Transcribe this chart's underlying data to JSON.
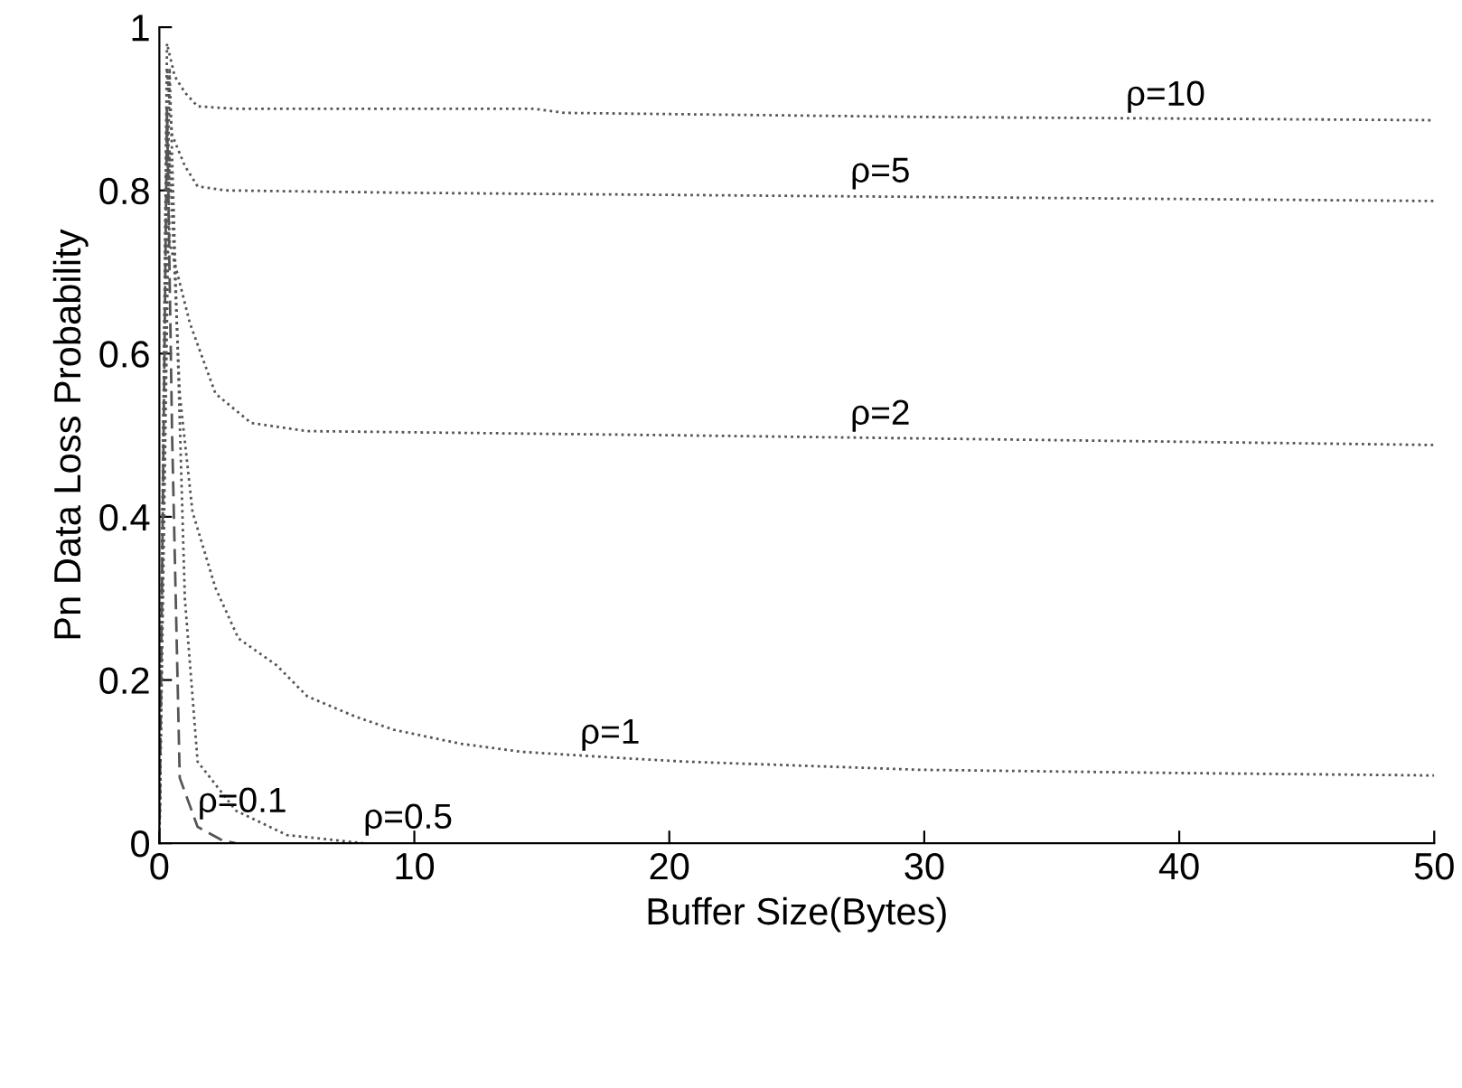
{
  "chart_data": {
    "type": "line",
    "xlabel": "Buffer Size(Bytes)",
    "ylabel": "Pn Data Loss Probability",
    "xlim": [
      0,
      50
    ],
    "ylim": [
      0,
      1
    ],
    "xticks": [
      0,
      10,
      20,
      30,
      40,
      50
    ],
    "yticks": [
      0,
      0.2,
      0.4,
      0.6,
      0.8,
      1
    ],
    "grid": false,
    "legend": false,
    "marker": "none",
    "series": [
      {
        "color": "#555555",
        "line_style": "dotted",
        "x": [
          0,
          0.3,
          0.6,
          1,
          1.5,
          3,
          10,
          14.7,
          15.9,
          30,
          50
        ],
        "values": [
          0,
          0.98,
          0.94,
          0.92,
          0.903,
          0.9,
          0.9,
          0.9,
          0.895,
          0.89,
          0.886
        ]
      },
      {
        "color": "#555555",
        "line_style": "dotted",
        "x": [
          0,
          0.3,
          0.5,
          1,
          1.5,
          2.6,
          10,
          30,
          50
        ],
        "values": [
          0,
          0.95,
          0.868,
          0.83,
          0.805,
          0.8,
          0.797,
          0.792,
          0.787
        ]
      },
      {
        "color": "#555555",
        "line_style": "dotted",
        "x": [
          0,
          0.3,
          0.4,
          1.2,
          2.2,
          3.6,
          5.8,
          20,
          50
        ],
        "values": [
          0,
          0.9,
          0.736,
          0.637,
          0.551,
          0.515,
          0.505,
          0.5,
          0.488
        ]
      },
      {
        "color": "#555555",
        "line_style": "dotted",
        "x": [
          0,
          0.4,
          0.8,
          1.3,
          2.2,
          3.1,
          4.6,
          5.8,
          7.7,
          9.2,
          11.8,
          14.2,
          18.3,
          20.6,
          29.8,
          40,
          50
        ],
        "values": [
          0,
          0.85,
          0.55,
          0.406,
          0.313,
          0.251,
          0.218,
          0.18,
          0.155,
          0.139,
          0.122,
          0.112,
          0.104,
          0.1,
          0.09,
          0.086,
          0.083
        ]
      },
      {
        "color": "#555555",
        "line_style": "dashed",
        "x": [
          0,
          0.3,
          0.5,
          0.8,
          1.5,
          2.5,
          3
        ],
        "values": [
          0,
          0.9,
          0.5,
          0.08,
          0.02,
          0.003,
          0
        ]
      },
      {
        "color": "#555555",
        "line_style": "dotted",
        "x": [
          0,
          0.4,
          1,
          1.5,
          3,
          5,
          8
        ],
        "values": [
          0,
          0.95,
          0.3,
          0.1,
          0.04,
          0.01,
          0
        ]
      }
    ],
    "annotations": [
      {
        "text": "ρ=10",
        "x": 37.9,
        "y": 0.886
      },
      {
        "text": "ρ=5",
        "x": 27.1,
        "y": 0.792
      },
      {
        "text": "ρ=2",
        "x": 27.1,
        "y": 0.495
      },
      {
        "text": "ρ=1",
        "x": 16.5,
        "y": 0.104
      },
      {
        "text": "ρ=0.1",
        "x": 1.5,
        "y": 0.02
      },
      {
        "text": "ρ=0.5",
        "x": 8,
        "y": 0
      }
    ]
  }
}
